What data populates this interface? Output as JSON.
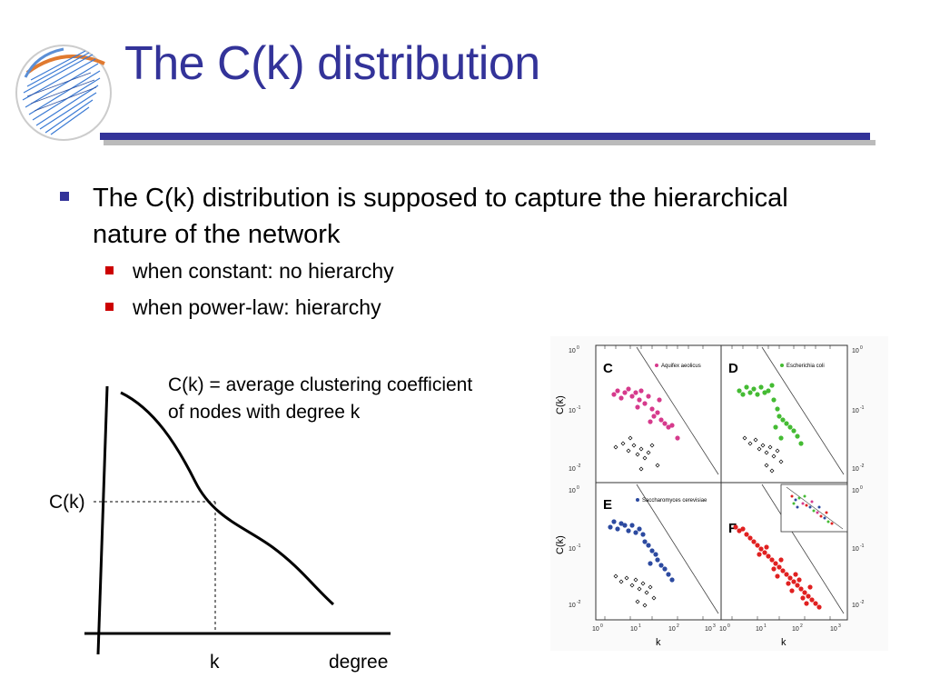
{
  "title": "The C(k) distribution",
  "bullets": {
    "main": "The C(k) distribution is supposed to capture the hierarchical nature of the network",
    "sub": [
      "when constant: no hierarchy",
      "when power-law: hierarchy"
    ]
  },
  "sketch": {
    "y_label": "C(k)",
    "x_label": "degree",
    "k_label": "k",
    "definition_line1": "C(k) = average clustering coefficient",
    "definition_line2": "of nodes with degree k"
  },
  "panels": {
    "y_axis": "C(k)",
    "x_axis": "k",
    "c_label": "C",
    "c_legend": "Aquifex aeolicus",
    "d_label": "D",
    "d_legend": "Escherichia coli",
    "e_label": "E",
    "e_legend": "Saccharomyces cerevisiae",
    "f_label": "F",
    "tick_1e0": "10",
    "exp0": "0",
    "exp1": "-1",
    "exp2": "-2",
    "xexp0": "0",
    "xexp1": "1",
    "xexp2": "2",
    "xexp3": "3"
  },
  "colors": {
    "title": "#333399",
    "bullet_main": "#333399",
    "bullet_sub": "#cc0000",
    "aquifex": "#d63a8c",
    "ecoli": "#44bb33",
    "yeast": "#2c4aa0",
    "panel_f": "#e02020"
  }
}
